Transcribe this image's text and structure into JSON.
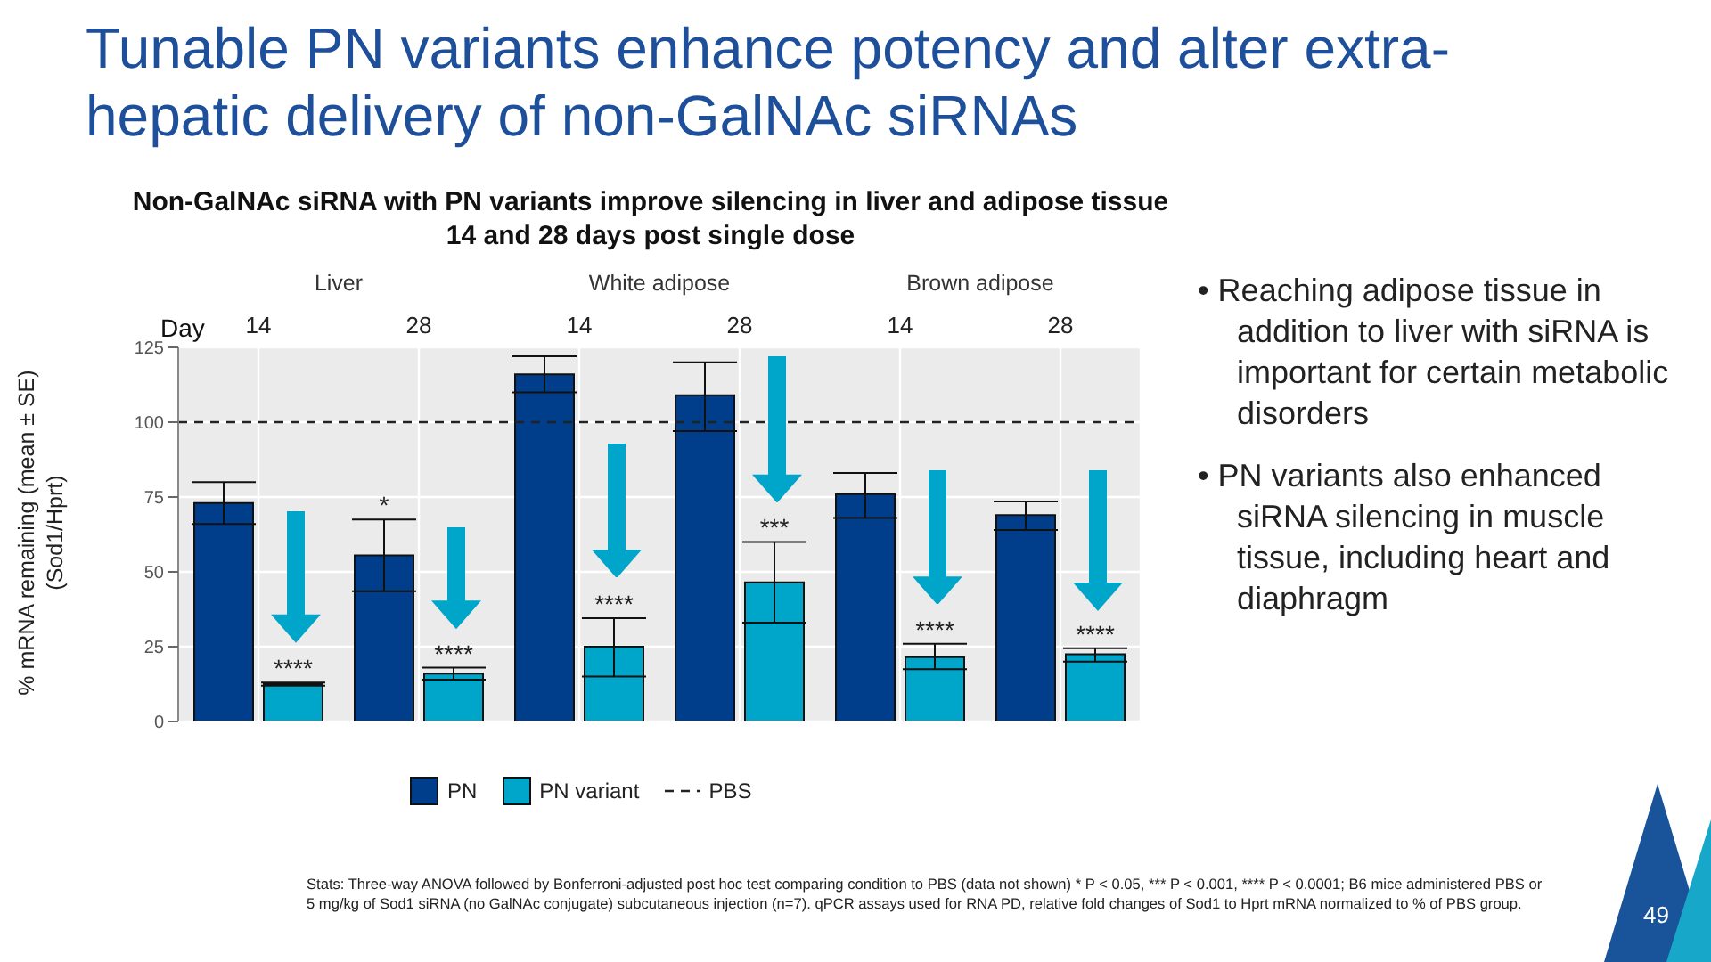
{
  "chart_data": {
    "type": "bar",
    "title": "Tunable PN variants enhance potency and alter extra-hepatic delivery of non-GalNAc siRNAs",
    "subtitle": "Non-GalNAc siRNA with PN variants improve silencing in liver and adipose tissue 14 and 28 days post single dose",
    "xlabel": "Day",
    "ylabel": "% mRNA remaining (mean ± SE) (Sod1/Hprt)",
    "categories": [
      "14",
      "28",
      "14",
      "28",
      "14",
      "28"
    ],
    "series": [
      {
        "name": "PN",
        "color": "#003e8c",
        "values": [
          73,
          55.5,
          116,
          109,
          76,
          69
        ],
        "errors": [
          [
            66,
            80
          ],
          [
            43.5,
            67.5
          ],
          [
            110,
            122
          ],
          [
            97,
            120
          ],
          [
            68,
            83
          ],
          [
            64,
            73.5
          ]
        ],
        "value_labels": [
          null,
          "*",
          null,
          null,
          null,
          null
        ]
      },
      {
        "name": "PN variant",
        "color": "#00a6c9",
        "values": [
          12.5,
          16,
          25,
          46.5,
          21.5,
          22.5
        ],
        "errors": [
          [
            12,
            13
          ],
          [
            14,
            18
          ],
          [
            15,
            34.5
          ],
          [
            33,
            60
          ],
          [
            17.5,
            26
          ],
          [
            20,
            24.5
          ]
        ],
        "value_labels": [
          "****",
          "****",
          "****",
          "***",
          "****",
          "****"
        ]
      }
    ],
    "ylim": [
      0,
      125
    ],
    "yticks": [
      0,
      25,
      50,
      75,
      100,
      125
    ],
    "grid": true,
    "legend": "bottom",
    "ref_lines": [
      {
        "axis": "y",
        "value": 100,
        "label": "PBS",
        "line_style": "dashed",
        "color": "#222222"
      }
    ],
    "annotations": [
      "Liver",
      "White adipose",
      "Brown adipose",
      "• Reaching adipose tissue in addition to liver with siRNA is important for certain metabolic disorders",
      "• PN variants also enhanced siRNA silencing in muscle tissue, including heart and diaphragm",
      "Stats: Three-way ANOVA followed by Bonferroni-adjusted post hoc test comparing condition to PBS (data not shown) * P < 0.05, *** P < 0.001, **** P < 0.0001; B6 mice administered PBS or 5 mg/kg of Sod1 siRNA (no GalNAc conjugate) subcutaneous injection (n=7). qPCR assays used for RNA PD, relative fold changes of Sod1 to Hprt mRNA normalized to % of PBS group.",
      "49"
    ]
  }
}
